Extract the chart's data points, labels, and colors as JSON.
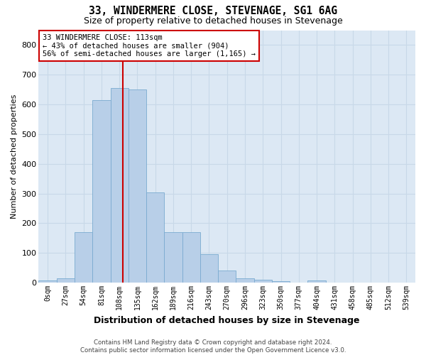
{
  "title": "33, WINDERMERE CLOSE, STEVENAGE, SG1 6AG",
  "subtitle": "Size of property relative to detached houses in Stevenage",
  "xlabel": "Distribution of detached houses by size in Stevenage",
  "ylabel": "Number of detached properties",
  "bar_labels": [
    "0sqm",
    "27sqm",
    "54sqm",
    "81sqm",
    "108sqm",
    "135sqm",
    "162sqm",
    "189sqm",
    "216sqm",
    "243sqm",
    "270sqm",
    "296sqm",
    "323sqm",
    "350sqm",
    "377sqm",
    "404sqm",
    "431sqm",
    "458sqm",
    "485sqm",
    "512sqm",
    "539sqm"
  ],
  "bar_values": [
    8,
    15,
    170,
    615,
    655,
    650,
    305,
    170,
    170,
    97,
    42,
    15,
    10,
    5,
    0,
    7,
    0,
    0,
    0,
    0,
    0
  ],
  "bar_color": "#b8cfe8",
  "bar_edgecolor": "#7aaad0",
  "annotation_line1": "33 WINDERMERE CLOSE: 113sqm",
  "annotation_line2": "← 43% of detached houses are smaller (904)",
  "annotation_line3": "56% of semi-detached houses are larger (1,165) →",
  "annotation_box_color": "#ffffff",
  "annotation_box_edgecolor": "#cc0000",
  "vline_color": "#cc0000",
  "ylim": [
    0,
    850
  ],
  "yticks": [
    0,
    100,
    200,
    300,
    400,
    500,
    600,
    700,
    800
  ],
  "grid_color": "#c8d8e8",
  "background_color": "#dce8f4",
  "footer_line1": "Contains HM Land Registry data © Crown copyright and database right 2024.",
  "footer_line2": "Contains public sector information licensed under the Open Government Licence v3.0."
}
